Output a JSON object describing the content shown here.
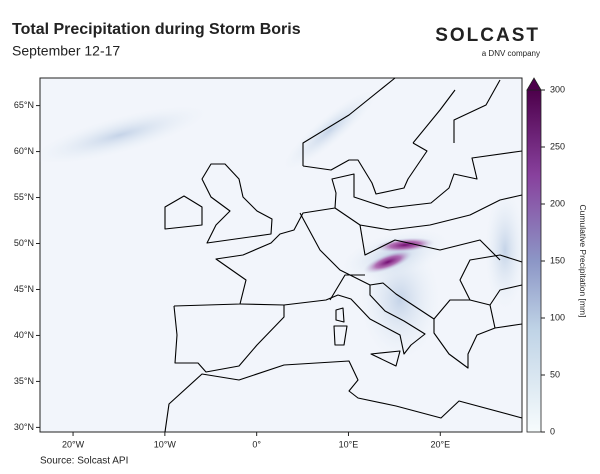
{
  "header": {
    "title": "Total Precipitation during Storm Boris",
    "subtitle": "September 12-17"
  },
  "logo": {
    "name": "SOLCAST",
    "tagline": "a DNV company"
  },
  "chart_data": {
    "type": "map",
    "xlim": [
      -23.6,
      28.9
    ],
    "ylim": [
      29.5,
      68
    ],
    "xticks": [
      {
        "value": -20,
        "label": "20°W"
      },
      {
        "value": -10,
        "label": "10°W"
      },
      {
        "value": 0,
        "label": "0°"
      },
      {
        "value": 10,
        "label": "10°E"
      },
      {
        "value": 20,
        "label": "20°E"
      }
    ],
    "yticks": [
      {
        "value": 30,
        "label": "30°N"
      },
      {
        "value": 35,
        "label": "35°N"
      },
      {
        "value": 40,
        "label": "40°N"
      },
      {
        "value": 45,
        "label": "45°N"
      },
      {
        "value": 50,
        "label": "50°N"
      },
      {
        "value": 55,
        "label": "55°N"
      },
      {
        "value": 60,
        "label": "60°N"
      },
      {
        "value": 65,
        "label": "65°N"
      }
    ],
    "colorbar": {
      "label": "Cumulative Precipitation [mm]",
      "lim": [
        0,
        300
      ],
      "ticks": [
        0,
        50,
        100,
        150,
        200,
        250,
        300
      ]
    }
  },
  "footer": {
    "source": "Source: Solcast API"
  }
}
